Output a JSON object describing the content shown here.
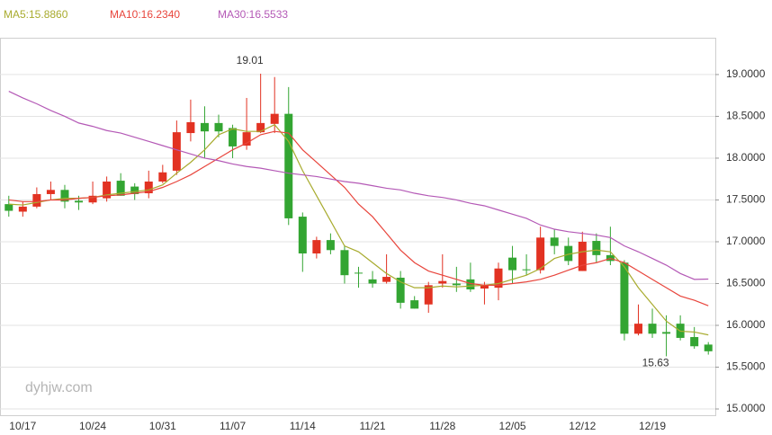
{
  "chart_data": {
    "type": "candlestick",
    "categories": [
      null,
      "10/17",
      null,
      null,
      null,
      null,
      "10/24",
      null,
      null,
      null,
      null,
      "10/31",
      null,
      null,
      null,
      null,
      "11/07",
      null,
      null,
      null,
      null,
      "11/14",
      null,
      null,
      null,
      null,
      "11/21",
      null,
      null,
      null,
      null,
      "11/28",
      null,
      null,
      null,
      null,
      "12/05",
      null,
      null,
      null,
      null,
      "12/12",
      null,
      null,
      null,
      null,
      "12/19",
      null,
      null,
      null,
      null
    ],
    "open": [
      17.45,
      17.36,
      17.42,
      17.57,
      17.62,
      17.49,
      17.47,
      17.52,
      17.73,
      17.66,
      17.58,
      17.72,
      17.85,
      18.3,
      18.42,
      18.42,
      18.36,
      18.15,
      18.31,
      18.41,
      18.53,
      17.3,
      16.86,
      17.02,
      16.9,
      16.63,
      16.55,
      16.52,
      16.57,
      16.3,
      16.25,
      16.5,
      16.5,
      16.55,
      16.44,
      16.45,
      16.81,
      16.67,
      16.66,
      17.05,
      16.95,
      16.65,
      17.01,
      16.84,
      16.75,
      15.9,
      16.02,
      15.92,
      16.02,
      15.86,
      15.77
    ],
    "high": [
      17.55,
      17.48,
      17.65,
      17.72,
      17.68,
      17.55,
      17.72,
      17.78,
      17.82,
      17.7,
      17.85,
      17.92,
      18.45,
      18.7,
      18.62,
      18.52,
      18.4,
      18.72,
      19.01,
      18.97,
      18.85,
      17.35,
      17.06,
      17.1,
      16.95,
      16.7,
      16.65,
      16.85,
      16.65,
      16.35,
      16.52,
      16.85,
      16.7,
      16.75,
      16.52,
      16.75,
      16.95,
      16.85,
      17.18,
      17.15,
      17.05,
      17.12,
      17.1,
      17.18,
      16.78,
      16.25,
      16.2,
      16.12,
      16.12,
      15.98,
      15.8
    ],
    "low": [
      17.3,
      17.3,
      17.4,
      17.5,
      17.4,
      17.38,
      17.45,
      17.48,
      17.55,
      17.5,
      17.52,
      17.7,
      17.8,
      18.2,
      18.0,
      18.25,
      18.0,
      18.1,
      18.3,
      18.3,
      17.2,
      16.64,
      16.8,
      16.85,
      16.5,
      16.45,
      16.45,
      16.5,
      16.2,
      16.2,
      16.15,
      16.45,
      16.4,
      16.4,
      16.25,
      16.3,
      16.5,
      16.6,
      16.62,
      16.85,
      16.72,
      16.65,
      16.75,
      16.72,
      15.82,
      15.88,
      15.85,
      15.63,
      15.82,
      15.72,
      15.65
    ],
    "close": [
      17.37,
      17.42,
      17.57,
      17.62,
      17.48,
      17.47,
      17.55,
      17.72,
      17.55,
      17.57,
      17.72,
      17.83,
      18.31,
      18.43,
      18.32,
      18.32,
      18.14,
      18.31,
      18.42,
      18.53,
      17.28,
      16.86,
      17.02,
      16.9,
      16.6,
      16.62,
      16.5,
      16.58,
      16.27,
      16.2,
      16.48,
      16.53,
      16.48,
      16.43,
      16.48,
      16.68,
      16.66,
      16.66,
      17.05,
      16.95,
      16.77,
      17.0,
      16.84,
      16.77,
      15.9,
      16.02,
      15.9,
      15.9,
      15.85,
      15.75,
      15.69
    ],
    "up_color": "#e23222",
    "down_color": "#33a532",
    "series": [
      {
        "name": "MA5:15.8860",
        "color": "#a8ab2e",
        "values": [
          17.45,
          17.44,
          17.47,
          17.5,
          17.52,
          17.52,
          17.53,
          17.56,
          17.58,
          17.6,
          17.62,
          17.68,
          17.82,
          17.95,
          18.1,
          18.28,
          18.35,
          18.32,
          18.32,
          18.4,
          18.2,
          17.85,
          17.55,
          17.25,
          16.95,
          16.88,
          16.75,
          16.62,
          16.52,
          16.45,
          16.45,
          16.47,
          16.46,
          16.47,
          16.48,
          16.5,
          16.55,
          16.6,
          16.68,
          16.8,
          16.85,
          16.88,
          16.9,
          16.88,
          16.7,
          16.45,
          16.25,
          16.05,
          15.93,
          15.92,
          15.886
        ]
      },
      {
        "name": "MA10:16.2340",
        "color": "#e8453c",
        "values": [
          17.5,
          17.48,
          17.48,
          17.5,
          17.5,
          17.52,
          17.53,
          17.55,
          17.56,
          17.58,
          17.6,
          17.65,
          17.72,
          17.8,
          17.9,
          18.0,
          18.1,
          18.18,
          18.28,
          18.32,
          18.3,
          18.1,
          17.95,
          17.8,
          17.65,
          17.45,
          17.3,
          17.1,
          16.9,
          16.75,
          16.65,
          16.6,
          16.55,
          16.5,
          16.48,
          16.48,
          16.5,
          16.52,
          16.55,
          16.6,
          16.66,
          16.72,
          16.75,
          16.8,
          16.75,
          16.65,
          16.55,
          16.45,
          16.35,
          16.3,
          16.234
        ]
      },
      {
        "name": "MA30:16.5533",
        "color": "#b459b6",
        "values": [
          18.8,
          18.72,
          18.65,
          18.57,
          18.5,
          18.42,
          18.38,
          18.33,
          18.3,
          18.25,
          18.2,
          18.15,
          18.1,
          18.05,
          18.0,
          17.97,
          17.93,
          17.9,
          17.88,
          17.85,
          17.82,
          17.8,
          17.78,
          17.75,
          17.72,
          17.7,
          17.67,
          17.64,
          17.62,
          17.58,
          17.55,
          17.53,
          17.5,
          17.46,
          17.43,
          17.38,
          17.33,
          17.28,
          17.2,
          17.15,
          17.12,
          17.1,
          17.08,
          17.05,
          16.95,
          16.88,
          16.8,
          16.72,
          16.62,
          16.55,
          16.5533
        ]
      }
    ],
    "ylim": [
      14.925,
      19.44
    ],
    "yticks": [
      {
        "value": 15,
        "label": "15.0000"
      },
      {
        "value": 15.5,
        "label": "15.5000"
      },
      {
        "value": 16,
        "label": "16.0000"
      },
      {
        "value": 16.5,
        "label": "16.5000"
      },
      {
        "value": 17,
        "label": "17.0000"
      },
      {
        "value": 17.5,
        "label": "17.5000"
      },
      {
        "value": 18,
        "label": "18.0000"
      },
      {
        "value": 18.5,
        "label": "18.5000"
      },
      {
        "value": 19,
        "label": "19.0000"
      }
    ],
    "grid": true,
    "max_label": "19.01",
    "min_label": "15.63",
    "watermark": "dyhjw.com"
  }
}
